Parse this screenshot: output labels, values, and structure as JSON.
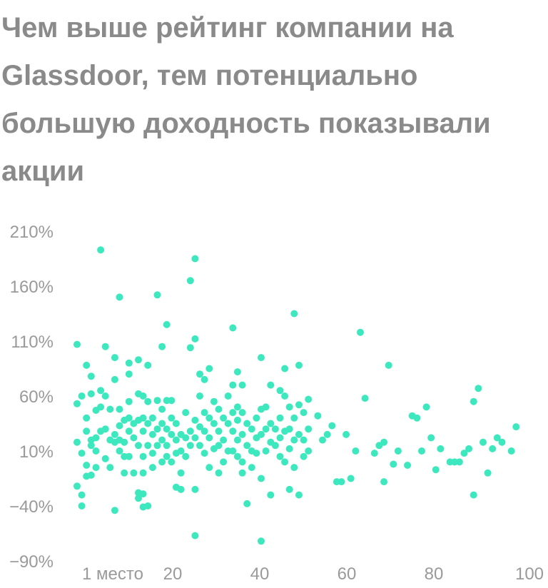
{
  "title": "Чем выше рейтинг компании на Glassdoor, тем потенциально большую доходность показывали акции",
  "chart_data": {
    "type": "scatter",
    "title": "Чем выше рейтинг компании на Glassdoor, тем потенциально большую доходность показывали акции",
    "xlabel": "",
    "ylabel": "",
    "xlim": [
      1,
      100
    ],
    "ylim": [
      -90,
      210
    ],
    "x_tick_labels": [
      {
        "value": 1,
        "label": "1 место"
      },
      {
        "value": 20,
        "label": "20"
      },
      {
        "value": 40,
        "label": "40"
      },
      {
        "value": 60,
        "label": "60"
      },
      {
        "value": 80,
        "label": "80"
      },
      {
        "value": 100,
        "label": "100"
      }
    ],
    "y_tick_labels": [
      {
        "value": 210,
        "label": "210%"
      },
      {
        "value": 160,
        "label": "160%"
      },
      {
        "value": 110,
        "label": "110%"
      },
      {
        "value": 60,
        "label": "60%"
      },
      {
        "value": 10,
        "label": "10%"
      },
      {
        "value": -40,
        "label": "−40%"
      },
      {
        "value": -90,
        "label": "−90%"
      }
    ],
    "grid": false,
    "color": "#3ee8bf",
    "points": [
      [
        1,
        107
      ],
      [
        1,
        53
      ],
      [
        1,
        18
      ],
      [
        1,
        -22
      ],
      [
        2,
        60
      ],
      [
        2,
        8
      ],
      [
        2,
        -40
      ],
      [
        2,
        -30
      ],
      [
        3,
        88
      ],
      [
        3,
        40
      ],
      [
        3,
        28
      ],
      [
        3,
        -13
      ],
      [
        3,
        -3
      ],
      [
        4,
        78
      ],
      [
        4,
        62
      ],
      [
        4,
        20
      ],
      [
        4,
        15
      ],
      [
        4,
        -12
      ],
      [
        5,
        47
      ],
      [
        5,
        22
      ],
      [
        5,
        10
      ],
      [
        5,
        -5
      ],
      [
        6,
        193
      ],
      [
        6,
        65
      ],
      [
        6,
        50
      ],
      [
        6,
        28
      ],
      [
        7,
        105
      ],
      [
        7,
        60
      ],
      [
        7,
        30
      ],
      [
        7,
        3
      ],
      [
        8,
        48
      ],
      [
        8,
        20
      ],
      [
        8,
        -5
      ],
      [
        9,
        95
      ],
      [
        9,
        75
      ],
      [
        9,
        18
      ],
      [
        9,
        -44
      ],
      [
        9,
        25
      ],
      [
        10,
        150
      ],
      [
        10,
        48
      ],
      [
        10,
        33
      ],
      [
        10,
        20
      ],
      [
        10,
        10
      ],
      [
        11,
        38
      ],
      [
        11,
        18
      ],
      [
        11,
        5
      ],
      [
        11,
        -10
      ],
      [
        12,
        90
      ],
      [
        12,
        80
      ],
      [
        12,
        55
      ],
      [
        12,
        40
      ],
      [
        12,
        28
      ],
      [
        12,
        5
      ],
      [
        13,
        35
      ],
      [
        13,
        22
      ],
      [
        13,
        -10
      ],
      [
        14,
        93
      ],
      [
        14,
        62
      ],
      [
        14,
        38
      ],
      [
        14,
        15
      ],
      [
        14,
        -28
      ],
      [
        14,
        -33
      ],
      [
        15,
        60
      ],
      [
        15,
        40
      ],
      [
        15,
        28
      ],
      [
        15,
        5
      ],
      [
        15,
        -10
      ],
      [
        15,
        -41
      ],
      [
        15,
        -29
      ],
      [
        16,
        88
      ],
      [
        16,
        55
      ],
      [
        16,
        35
      ],
      [
        16,
        15
      ],
      [
        16,
        -40
      ],
      [
        17,
        40
      ],
      [
        17,
        25
      ],
      [
        17,
        8
      ],
      [
        17,
        -5
      ],
      [
        18,
        152
      ],
      [
        18,
        56
      ],
      [
        18,
        30
      ],
      [
        18,
        15
      ],
      [
        19,
        105
      ],
      [
        19,
        48
      ],
      [
        19,
        35
      ],
      [
        19,
        20
      ],
      [
        19,
        0
      ],
      [
        20,
        125
      ],
      [
        20,
        56
      ],
      [
        20,
        30
      ],
      [
        20,
        15
      ],
      [
        20,
        5
      ],
      [
        21,
        56
      ],
      [
        21,
        40
      ],
      [
        21,
        25
      ],
      [
        21,
        0
      ],
      [
        22,
        35
      ],
      [
        22,
        20
      ],
      [
        22,
        -23
      ],
      [
        22,
        8
      ],
      [
        23,
        25
      ],
      [
        23,
        10
      ],
      [
        23,
        -25
      ],
      [
        23,
        -10
      ],
      [
        24,
        45
      ],
      [
        24,
        22
      ],
      [
        24,
        5
      ],
      [
        25,
        165
      ],
      [
        25,
        104
      ],
      [
        25,
        28
      ],
      [
        25,
        15
      ],
      [
        26,
        185
      ],
      [
        26,
        112
      ],
      [
        26,
        38
      ],
      [
        26,
        22
      ],
      [
        26,
        -67
      ],
      [
        26,
        -25
      ],
      [
        27,
        80
      ],
      [
        27,
        60
      ],
      [
        27,
        32
      ],
      [
        27,
        15
      ],
      [
        28,
        75
      ],
      [
        28,
        45
      ],
      [
        28,
        28
      ],
      [
        28,
        8
      ],
      [
        29,
        85
      ],
      [
        29,
        40
      ],
      [
        29,
        22
      ],
      [
        29,
        -5
      ],
      [
        30,
        55
      ],
      [
        30,
        35
      ],
      [
        30,
        12
      ],
      [
        31,
        48
      ],
      [
        31,
        28
      ],
      [
        31,
        15
      ],
      [
        31,
        -10
      ],
      [
        32,
        40
      ],
      [
        32,
        20
      ],
      [
        32,
        0
      ],
      [
        33,
        60
      ],
      [
        33,
        35
      ],
      [
        33,
        10
      ],
      [
        34,
        122
      ],
      [
        34,
        70
      ],
      [
        34,
        45
      ],
      [
        34,
        28
      ],
      [
        34,
        10
      ],
      [
        35,
        82
      ],
      [
        35,
        50
      ],
      [
        35,
        38
      ],
      [
        35,
        20
      ],
      [
        35,
        5
      ],
      [
        36,
        70
      ],
      [
        36,
        45
      ],
      [
        36,
        25
      ],
      [
        36,
        0
      ],
      [
        36,
        -10
      ],
      [
        37,
        35
      ],
      [
        37,
        15
      ],
      [
        37,
        -38
      ],
      [
        38,
        30
      ],
      [
        38,
        10
      ],
      [
        38,
        -5
      ],
      [
        39,
        40
      ],
      [
        39,
        22
      ],
      [
        39,
        8
      ],
      [
        40,
        95
      ],
      [
        40,
        48
      ],
      [
        40,
        25
      ],
      [
        40,
        -72
      ],
      [
        40,
        -15
      ],
      [
        41,
        50
      ],
      [
        41,
        30
      ],
      [
        41,
        10
      ],
      [
        42,
        70
      ],
      [
        42,
        35
      ],
      [
        42,
        18
      ],
      [
        42,
        -30
      ],
      [
        43,
        30
      ],
      [
        43,
        15
      ],
      [
        44,
        65
      ],
      [
        44,
        40
      ],
      [
        44,
        22
      ],
      [
        44,
        5
      ],
      [
        45,
        85
      ],
      [
        45,
        60
      ],
      [
        45,
        28
      ],
      [
        45,
        0
      ],
      [
        46,
        50
      ],
      [
        46,
        30
      ],
      [
        46,
        12
      ],
      [
        46,
        -25
      ],
      [
        47,
        135
      ],
      [
        47,
        40
      ],
      [
        47,
        20
      ],
      [
        47,
        -5
      ],
      [
        48,
        88
      ],
      [
        48,
        52
      ],
      [
        48,
        25
      ],
      [
        48,
        -30
      ],
      [
        49,
        45
      ],
      [
        49,
        20
      ],
      [
        49,
        5
      ],
      [
        50,
        57
      ],
      [
        50,
        30
      ],
      [
        50,
        10
      ],
      [
        52,
        42
      ],
      [
        53,
        20
      ],
      [
        54,
        25
      ],
      [
        55,
        33
      ],
      [
        56,
        -18
      ],
      [
        57,
        -18
      ],
      [
        58,
        25
      ],
      [
        59,
        -15
      ],
      [
        60,
        10
      ],
      [
        61,
        118
      ],
      [
        62,
        58
      ],
      [
        64,
        8
      ],
      [
        65,
        15
      ],
      [
        66,
        18
      ],
      [
        66,
        -18
      ],
      [
        67,
        88
      ],
      [
        68,
        -2
      ],
      [
        69,
        10
      ],
      [
        71,
        -3
      ],
      [
        72,
        42
      ],
      [
        73,
        40
      ],
      [
        74,
        10
      ],
      [
        75,
        50
      ],
      [
        76,
        22
      ],
      [
        77,
        -7
      ],
      [
        78,
        12
      ],
      [
        80,
        0
      ],
      [
        81,
        0
      ],
      [
        82,
        0
      ],
      [
        83,
        8
      ],
      [
        84,
        12
      ],
      [
        85,
        -30
      ],
      [
        85,
        55
      ],
      [
        86,
        67
      ],
      [
        87,
        18
      ],
      [
        88,
        -10
      ],
      [
        89,
        12
      ],
      [
        90,
        22
      ],
      [
        91,
        18
      ],
      [
        93,
        10
      ],
      [
        94,
        32
      ]
    ]
  }
}
